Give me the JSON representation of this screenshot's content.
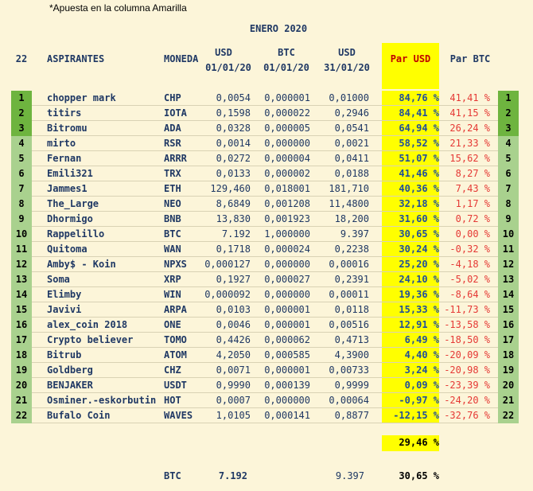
{
  "note": "*Apuesta en la columna Amarilla",
  "title": "ENERO 2020",
  "headers": {
    "rank": "22",
    "aspirantes": "ASPIRANTES",
    "moneda": "MONEDA",
    "usd1_a": "USD",
    "usd1_b": "01/01/20",
    "btc1_a": "BTC",
    "btc1_b": "01/01/20",
    "usd2_a": "USD",
    "usd2_b": "31/01/20",
    "par_usd": "Par USD",
    "par_btc": "Par BTC"
  },
  "colors": {
    "highlight": "#ffff00",
    "top_rank": "#6eb43f",
    "other_rank": "#a9d18e",
    "negative": "#e53935"
  },
  "rows": [
    {
      "rank": "1",
      "name": "chopper mark",
      "coin": "CHP",
      "usd1": "0,0054",
      "btc1": "0,000001",
      "usd2": "0,01000",
      "par_usd": "84,76 %",
      "par_btc": "41,41 %",
      "rank2": "1"
    },
    {
      "rank": "2",
      "name": "titirs",
      "coin": "IOTA",
      "usd1": "0,1598",
      "btc1": "0,000022",
      "usd2": "0,2946",
      "par_usd": "84,41 %",
      "par_btc": "41,15 %",
      "rank2": "2"
    },
    {
      "rank": "3",
      "name": "Bitromu",
      "coin": "ADA",
      "usd1": "0,0328",
      "btc1": "0,000005",
      "usd2": "0,0541",
      "par_usd": "64,94 %",
      "par_btc": "26,24 %",
      "rank2": "3"
    },
    {
      "rank": "4",
      "name": "mirto",
      "coin": "RSR",
      "usd1": "0,0014",
      "btc1": "0,000000",
      "usd2": "0,0021",
      "par_usd": "58,52 %",
      "par_btc": "21,33 %",
      "rank2": "4"
    },
    {
      "rank": "5",
      "name": "Fernan",
      "coin": "ARRR",
      "usd1": "0,0272",
      "btc1": "0,000004",
      "usd2": "0,0411",
      "par_usd": "51,07 %",
      "par_btc": "15,62 %",
      "rank2": "5"
    },
    {
      "rank": "6",
      "name": "Emili321",
      "coin": "TRX",
      "usd1": "0,0133",
      "btc1": "0,000002",
      "usd2": "0,0188",
      "par_usd": "41,46 %",
      "par_btc": "8,27 %",
      "rank2": "6"
    },
    {
      "rank": "7",
      "name": "Jammes1",
      "coin": "ETH",
      "usd1": "129,460",
      "btc1": "0,018001",
      "usd2": "181,710",
      "par_usd": "40,36 %",
      "par_btc": "7,43 %",
      "rank2": "7"
    },
    {
      "rank": "8",
      "name": "The_Large",
      "coin": "NEO",
      "usd1": "8,6849",
      "btc1": "0,001208",
      "usd2": "11,4800",
      "par_usd": "32,18 %",
      "par_btc": "1,17 %",
      "rank2": "8"
    },
    {
      "rank": "9",
      "name": "Dhormigo",
      "coin": "BNB",
      "usd1": "13,830",
      "btc1": "0,001923",
      "usd2": "18,200",
      "par_usd": "31,60 %",
      "par_btc": "0,72 %",
      "rank2": "9"
    },
    {
      "rank": "10",
      "name": "Rappelillo",
      "coin": "BTC",
      "usd1": "7.192",
      "btc1": "1,000000",
      "usd2": "9.397",
      "par_usd": "30,65 %",
      "par_btc": "0,00 %",
      "rank2": "10"
    },
    {
      "rank": "11",
      "name": "Quitoma",
      "coin": "WAN",
      "usd1": "0,1718",
      "btc1": "0,000024",
      "usd2": "0,2238",
      "par_usd": "30,24 %",
      "par_btc": "-0,32 %",
      "rank2": "11"
    },
    {
      "rank": "12",
      "name": "Amby$ - Koin",
      "coin": "NPXS",
      "usd1": "0,000127",
      "btc1": "0,000000",
      "usd2": "0,00016",
      "par_usd": "25,20 %",
      "par_btc": "-4,18 %",
      "rank2": "12"
    },
    {
      "rank": "13",
      "name": "Soma",
      "coin": "XRP",
      "usd1": "0,1927",
      "btc1": "0,000027",
      "usd2": "0,2391",
      "par_usd": "24,10 %",
      "par_btc": "-5,02 %",
      "rank2": "13"
    },
    {
      "rank": "14",
      "name": "Elimby",
      "coin": "WIN",
      "usd1": "0,000092",
      "btc1": "0,000000",
      "usd2": "0,00011",
      "par_usd": "19,36 %",
      "par_btc": "-8,64 %",
      "rank2": "14"
    },
    {
      "rank": "15",
      "name": "Javivi",
      "coin": "ARPA",
      "usd1": "0,0103",
      "btc1": "0,000001",
      "usd2": "0,0118",
      "par_usd": "15,33 %",
      "par_btc": "-11,73 %",
      "rank2": "15"
    },
    {
      "rank": "16",
      "name": "alex_coin 2018",
      "coin": "ONE",
      "usd1": "0,0046",
      "btc1": "0,000001",
      "usd2": "0,00516",
      "par_usd": "12,91 %",
      "par_btc": "-13,58 %",
      "rank2": "16"
    },
    {
      "rank": "17",
      "name": "Crypto believer",
      "coin": "TOMO",
      "usd1": "0,4426",
      "btc1": "0,000062",
      "usd2": "0,4713",
      "par_usd": "6,49 %",
      "par_btc": "-18,50 %",
      "rank2": "17"
    },
    {
      "rank": "18",
      "name": "Bitrub",
      "coin": "ATOM",
      "usd1": "4,2050",
      "btc1": "0,000585",
      "usd2": "4,3900",
      "par_usd": "4,40 %",
      "par_btc": "-20,09 %",
      "rank2": "18"
    },
    {
      "rank": "19",
      "name": "Goldberg",
      "coin": "CHZ",
      "usd1": "0,0071",
      "btc1": "0,000001",
      "usd2": "0,00733",
      "par_usd": "3,24 %",
      "par_btc": "-20,98 %",
      "rank2": "19"
    },
    {
      "rank": "20",
      "name": "BENJAKER",
      "coin": "USDT",
      "usd1": "0,9990",
      "btc1": "0,000139",
      "usd2": "0,9999",
      "par_usd": "0,09 %",
      "par_btc": "-23,39 %",
      "rank2": "20"
    },
    {
      "rank": "21",
      "name": "Osminer.-eskorbutin",
      "coin": "HOT",
      "usd1": "0,0007",
      "btc1": "0,000000",
      "usd2": "0,00064",
      "par_usd": "-0,97 %",
      "par_btc": "-24,20 %",
      "rank2": "21"
    },
    {
      "rank": "22",
      "name": "Bufalo Coin",
      "coin": "WAVES",
      "usd1": "1,0105",
      "btc1": "0,000141",
      "usd2": "0,8877",
      "par_usd": "-12,15 %",
      "par_btc": "-32,76 %",
      "rank2": "22"
    }
  ],
  "average": {
    "par_usd": "29,46 %"
  },
  "btc_summary": {
    "coin": "BTC",
    "usd1": "7.192",
    "usd2": "9.397",
    "par_usd": "30,65 %"
  }
}
